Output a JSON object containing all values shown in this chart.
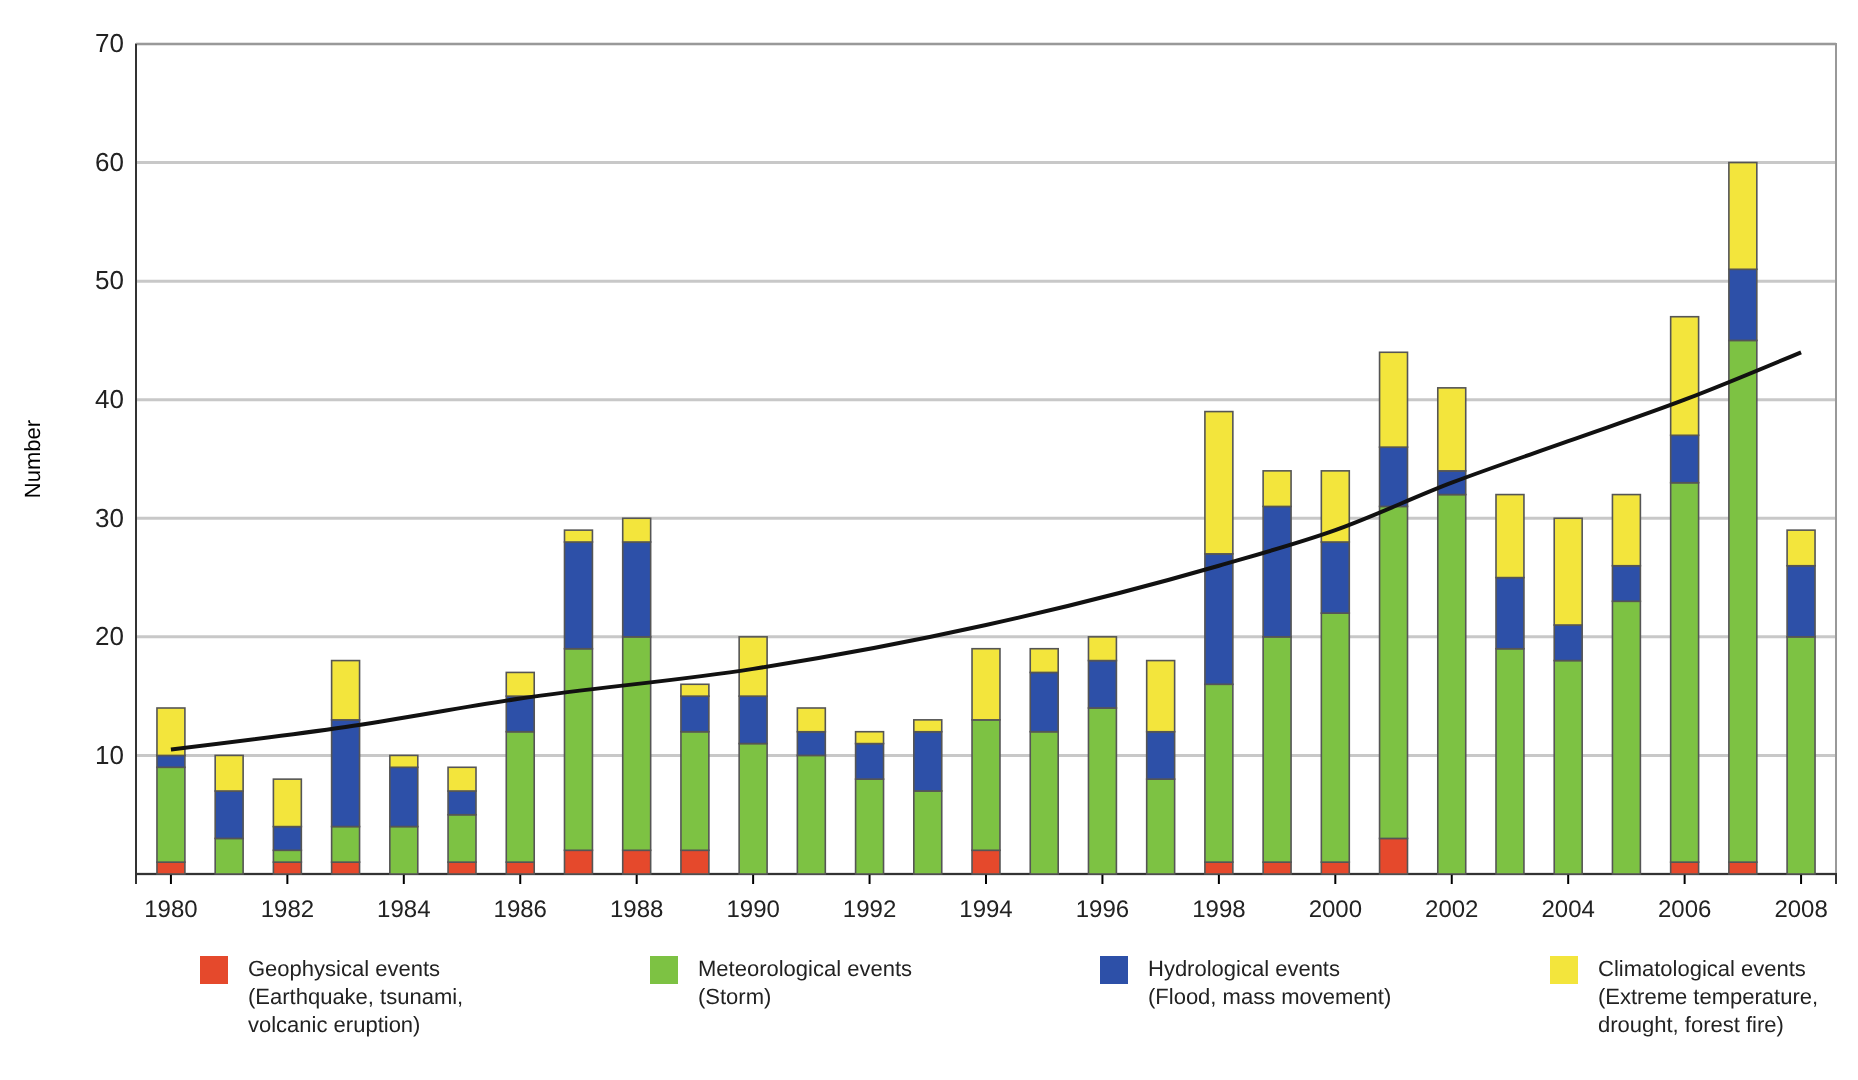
{
  "chart_data": {
    "type": "bar",
    "ylabel": "Number",
    "stacked": true,
    "x": [
      1980,
      1981,
      1982,
      1983,
      1984,
      1985,
      1986,
      1987,
      1988,
      1989,
      1990,
      1991,
      1992,
      1993,
      1994,
      1995,
      1996,
      1997,
      1998,
      1999,
      2000,
      2001,
      2002,
      2003,
      2004,
      2005,
      2006,
      2007,
      2008
    ],
    "xlim": [
      1979.4,
      2008.6
    ],
    "xticks": [
      1980,
      1982,
      1984,
      1986,
      1988,
      1990,
      1992,
      1994,
      1996,
      1998,
      2000,
      2002,
      2004,
      2006,
      2008
    ],
    "ylim": [
      0,
      70
    ],
    "yticks": [
      {
        "value": 0,
        "label": null
      },
      10,
      20,
      30,
      40,
      50,
      60,
      70
    ],
    "grid": "y",
    "legend": "bottom",
    "series": [
      {
        "name": "Geophysical events (Earthquake, tsunami, volcanic eruption)",
        "color": "#e5492c",
        "values": [
          1,
          0,
          1,
          1,
          0,
          1,
          1,
          2,
          2,
          2,
          0,
          0,
          0,
          0,
          2,
          0,
          0,
          0,
          1,
          1,
          1,
          3,
          0,
          0,
          0,
          0,
          1,
          1,
          0
        ]
      },
      {
        "name": "Meteorological events (Storm)",
        "color": "#7dc243",
        "values": [
          8,
          3,
          1,
          3,
          4,
          4,
          11,
          17,
          18,
          10,
          11,
          10,
          8,
          7,
          11,
          12,
          14,
          8,
          15,
          19,
          21,
          28,
          32,
          19,
          18,
          23,
          32,
          44,
          20
        ]
      },
      {
        "name": "Hydrological events (Flood, mass movement)",
        "color": "#2d50a8",
        "values": [
          1,
          4,
          2,
          9,
          5,
          2,
          3,
          9,
          8,
          3,
          4,
          2,
          3,
          5,
          0,
          5,
          4,
          4,
          11,
          11,
          6,
          5,
          2,
          6,
          3,
          3,
          4,
          6,
          6
        ]
      },
      {
        "name": "Climatological events (Extreme temperature, drought, forest fire)",
        "color": "#f3e53c",
        "values": [
          4,
          3,
          4,
          5,
          1,
          2,
          2,
          1,
          2,
          1,
          5,
          2,
          1,
          1,
          6,
          2,
          2,
          6,
          12,
          3,
          6,
          8,
          7,
          7,
          9,
          6,
          10,
          9,
          3
        ]
      },
      {
        "type": "line",
        "color": "#111111",
        "x": [
          1980,
          1983,
          1986,
          1990,
          1994,
          1998,
          2000,
          2002,
          2004,
          2006,
          2008
        ],
        "values": [
          10.5,
          12.4,
          14.8,
          17.3,
          21,
          26,
          29,
          33,
          36.5,
          40,
          44
        ]
      }
    ]
  }
}
